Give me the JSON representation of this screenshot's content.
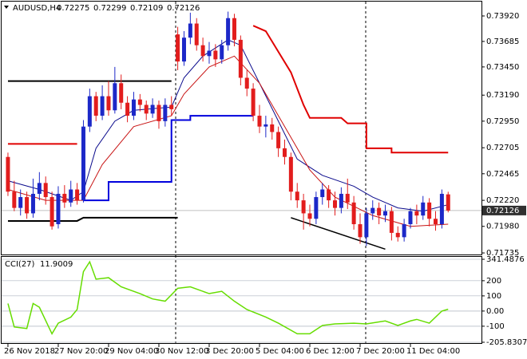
{
  "chart_data": [
    {
      "type": "candlestick",
      "symbol": "AUDUSD,H4",
      "up_color": "#1c28c8",
      "down_color": "#e21d1d",
      "xlim": [
        -1.01,
        75.3
      ],
      "ylim": [
        0.71728,
        0.74045
      ],
      "yticks": [
        {
          "value": 0.7392,
          "label": "0.73920"
        },
        0.73685,
        {
          "value": 0.7345,
          "label": "0.73450"
        },
        {
          "value": 0.7319,
          "label": "0.73190"
        },
        {
          "value": 0.7295,
          "label": "0.72950"
        },
        0.72705,
        0.72465,
        {
          "value": 0.7222,
          "label": "0.72220"
        },
        {
          "value": 0.7198,
          "label": "0.71980"
        },
        0.71735
      ],
      "ohlc": [
        [
          0.7262,
          0.7266,
          0.7226,
          0.723
        ],
        [
          0.723,
          0.724,
          0.7212,
          0.7215
        ],
        [
          0.7215,
          0.7232,
          0.7208,
          0.7225
        ],
        [
          0.7225,
          0.723,
          0.7205,
          0.721
        ],
        [
          0.721,
          0.7242,
          0.7206,
          0.7228
        ],
        [
          0.7228,
          0.7248,
          0.7222,
          0.7238
        ],
        [
          0.7238,
          0.7244,
          0.7218,
          0.7225
        ],
        [
          0.7225,
          0.723,
          0.7195,
          0.7198
        ],
        [
          0.72,
          0.7235,
          0.7196,
          0.7228
        ],
        [
          0.7228,
          0.7236,
          0.7215,
          0.722
        ],
        [
          0.722,
          0.724,
          0.7216,
          0.7232
        ],
        [
          0.7232,
          0.7238,
          0.7218,
          0.7222
        ],
        [
          0.7222,
          0.7296,
          0.722,
          0.729
        ],
        [
          0.729,
          0.7325,
          0.7285,
          0.7318
        ],
        [
          0.7318,
          0.7322,
          0.7295,
          0.73
        ],
        [
          0.73,
          0.7328,
          0.7296,
          0.7318
        ],
        [
          0.7318,
          0.7332,
          0.73,
          0.7305
        ],
        [
          0.7305,
          0.7345,
          0.7302,
          0.733
        ],
        [
          0.733,
          0.7338,
          0.7306,
          0.7312
        ],
        [
          0.7312,
          0.7318,
          0.7294,
          0.73
        ],
        [
          0.73,
          0.7322,
          0.7296,
          0.7315
        ],
        [
          0.7315,
          0.732,
          0.7304,
          0.731
        ],
        [
          0.731,
          0.7314,
          0.7296,
          0.7302
        ],
        [
          0.7302,
          0.7316,
          0.7298,
          0.731
        ],
        [
          0.731,
          0.7314,
          0.7288,
          0.7295
        ],
        [
          0.7295,
          0.7316,
          0.729,
          0.731
        ],
        [
          0.731,
          0.7318,
          0.73,
          0.7306
        ],
        [
          0.7375,
          0.7382,
          0.7342,
          0.735
        ],
        [
          0.735,
          0.7378,
          0.7346,
          0.7372
        ],
        [
          0.7372,
          0.7395,
          0.7366,
          0.7385
        ],
        [
          0.7385,
          0.739,
          0.736,
          0.7365
        ],
        [
          0.7365,
          0.7372,
          0.735,
          0.7355
        ],
        [
          0.7355,
          0.7368,
          0.7348,
          0.736
        ],
        [
          0.736,
          0.7366,
          0.7345,
          0.7352
        ],
        [
          0.7352,
          0.737,
          0.7348,
          0.7365
        ],
        [
          0.7365,
          0.7396,
          0.736,
          0.739
        ],
        [
          0.739,
          0.7394,
          0.7364,
          0.737
        ],
        [
          0.737,
          0.7374,
          0.7328,
          0.7335
        ],
        [
          0.7335,
          0.7342,
          0.7318,
          0.7325
        ],
        [
          0.7325,
          0.733,
          0.7295,
          0.73
        ],
        [
          0.73,
          0.731,
          0.7284,
          0.729
        ],
        [
          0.729,
          0.73,
          0.728,
          0.7292
        ],
        [
          0.7292,
          0.7298,
          0.7278,
          0.7285
        ],
        [
          0.7285,
          0.729,
          0.7262,
          0.727
        ],
        [
          0.727,
          0.7278,
          0.7255,
          0.7262
        ],
        [
          0.7262,
          0.7266,
          0.7222,
          0.723
        ],
        [
          0.723,
          0.7238,
          0.7215,
          0.7222
        ],
        [
          0.7222,
          0.7228,
          0.7195,
          0.721
        ],
        [
          0.721,
          0.7218,
          0.7198,
          0.7205
        ],
        [
          0.7205,
          0.723,
          0.72,
          0.7225
        ],
        [
          0.7225,
          0.7238,
          0.7218,
          0.7232
        ],
        [
          0.7232,
          0.7236,
          0.7215,
          0.7222
        ],
        [
          0.7222,
          0.723,
          0.7208,
          0.7215
        ],
        [
          0.7215,
          0.7234,
          0.721,
          0.7228
        ],
        [
          0.7228,
          0.7242,
          0.7214,
          0.722
        ],
        [
          0.722,
          0.7226,
          0.7195,
          0.72
        ],
        [
          0.72,
          0.721,
          0.7182,
          0.7188
        ],
        [
          0.7188,
          0.7215,
          0.718,
          0.721
        ],
        [
          0.721,
          0.7222,
          0.7204,
          0.7215
        ],
        [
          0.7215,
          0.722,
          0.72,
          0.7208
        ],
        [
          0.7208,
          0.7218,
          0.7202,
          0.7212
        ],
        [
          0.7212,
          0.7216,
          0.7185,
          0.7192
        ],
        [
          0.7192,
          0.7198,
          0.7184,
          0.7188
        ],
        [
          0.7188,
          0.7205,
          0.7184,
          0.72
        ],
        [
          0.72,
          0.7215,
          0.7196,
          0.7212
        ],
        [
          0.7212,
          0.7218,
          0.72,
          0.7208
        ],
        [
          0.7208,
          0.7226,
          0.7204,
          0.722
        ],
        [
          0.722,
          0.7224,
          0.7198,
          0.7205
        ],
        [
          0.7205,
          0.7212,
          0.7194,
          0.72
        ],
        [
          0.72,
          0.7232,
          0.7196,
          0.7228
        ],
        [
          0.72275,
          0.72299,
          0.72109,
          0.72126
        ]
      ],
      "series": [
        {
          "color": "#0a0a8c",
          "x": [
            0,
            5,
            10,
            12,
            14,
            17,
            20,
            26,
            28,
            31,
            35,
            37,
            40,
            43,
            46,
            50,
            55,
            58,
            62,
            66,
            70
          ],
          "values": [
            0.724,
            0.7232,
            0.7222,
            0.723,
            0.727,
            0.7295,
            0.7305,
            0.7308,
            0.7335,
            0.7355,
            0.737,
            0.7365,
            0.733,
            0.7295,
            0.726,
            0.7245,
            0.7235,
            0.7225,
            0.7215,
            0.7212,
            0.7218
          ]
        },
        {
          "color": "#c81414",
          "x": [
            0,
            6,
            12,
            15,
            20,
            26,
            28,
            32,
            36,
            40,
            44,
            48,
            52,
            58,
            64,
            70
          ],
          "values": [
            0.7232,
            0.7222,
            0.7222,
            0.7255,
            0.729,
            0.73,
            0.732,
            0.7345,
            0.7355,
            0.733,
            0.729,
            0.725,
            0.7225,
            0.7208,
            0.7198,
            0.72
          ]
        },
        {
          "color": "#e00000",
          "x": [
            0,
            11
          ],
          "values": [
            0.7274,
            0.7274
          ]
        },
        {
          "color": "#e00000",
          "x": [
            39,
            41,
            43,
            45,
            47,
            48,
            53,
            54,
            57,
            57,
            61,
            61,
            70
          ],
          "values": [
            0.7383,
            0.7378,
            0.7359,
            0.734,
            0.731,
            0.7298,
            0.7298,
            0.7293,
            0.7293,
            0.727,
            0.727,
            0.7266,
            0.7266
          ]
        },
        {
          "color": "#0000dd",
          "x": [
            12,
            16,
            16,
            26,
            26,
            29,
            29,
            39
          ],
          "values": [
            0.7222,
            0.7222,
            0.7239,
            0.7239,
            0.7296,
            0.7296,
            0.73,
            0.73
          ]
        },
        {
          "color": "#000000",
          "x": [
            0,
            26
          ],
          "values": [
            0.7332,
            0.7332
          ]
        },
        {
          "color": "#000000",
          "x": [
            0,
            11,
            12,
            27
          ],
          "values": [
            0.7203,
            0.7203,
            0.7206,
            0.7206
          ]
        },
        {
          "color": "#000000",
          "x": [
            45,
            60
          ],
          "values": [
            0.7206,
            0.7177
          ]
        }
      ]
    },
    {
      "type": "line",
      "title": "CCI(27)",
      "color": "#66dd00",
      "grid": true,
      "xlim": [
        -1.01,
        75.3
      ],
      "ylim": [
        -205.8307,
        341.4876
      ],
      "yticks": [
        341.4876,
        200,
        100,
        {
          "value": 0,
          "label": "0.00"
        },
        -100,
        -205.8307
      ],
      "xticks": [
        {
          "value": 0,
          "label": "26 Nov 2018"
        },
        {
          "value": 8,
          "label": "27 Nov 20:00"
        },
        {
          "value": 16,
          "label": "29 Nov 04:00"
        },
        {
          "value": 24,
          "label": "30 Nov 12:00"
        },
        {
          "value": 32,
          "label": "3 Dec 20:00"
        },
        {
          "value": 40,
          "label": "5 Dec 04:00"
        },
        {
          "value": 48,
          "label": "6 Dec 12:00"
        },
        {
          "value": 56,
          "label": "7 Dec 20:00"
        },
        {
          "value": 64,
          "label": "11 Dec 04:00"
        }
      ],
      "x": [
        0,
        1,
        3,
        4,
        5,
        7,
        8,
        10,
        11,
        12,
        13,
        14,
        16,
        18,
        21,
        23,
        25,
        27,
        29,
        32,
        34,
        36,
        38,
        41,
        43,
        46,
        48,
        50,
        52,
        55,
        57,
        60,
        62,
        64,
        65,
        67,
        69,
        70
      ],
      "values": [
        50,
        -105,
        -115,
        50,
        25,
        -150,
        -80,
        -40,
        10,
        260,
        325,
        210,
        220,
        160,
        115,
        80,
        65,
        150,
        160,
        115,
        130,
        65,
        10,
        -40,
        -80,
        -150,
        -150,
        -95,
        -85,
        -80,
        -85,
        -65,
        -95,
        -65,
        -55,
        -80,
        0,
        11.9009
      ]
    }
  ]
}
